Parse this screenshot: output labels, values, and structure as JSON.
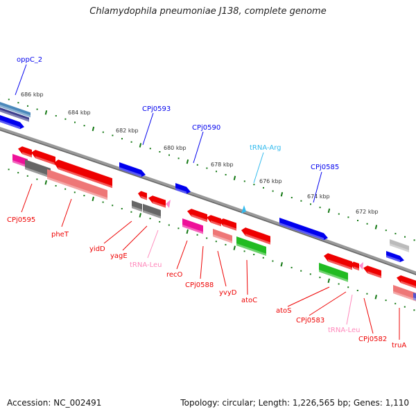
{
  "title": "Chlamydophila pneumoniae J138, complete genome",
  "footer": {
    "accession": "Accession: NC_002491",
    "summary": "Topology: circular; Length: 1,226,565 bp; Genes: 1,110"
  },
  "ruler": [
    "686 kbp",
    "684 kbp",
    "682 kbp",
    "680 kbp",
    "678 kbp",
    "676 kbp",
    "674 kbp",
    "672 kbp"
  ],
  "top_labels": [
    "oppC_2",
    "CPj0593",
    "CPj0590",
    "tRNA-Arg",
    "CPj0585"
  ],
  "bottom_labels": [
    "CPj0595",
    "pheT",
    "yidD",
    "yagE",
    "tRNA-Leu",
    "recO",
    "CPj0588",
    "yvyD",
    "atoC",
    "atoS",
    "CPj0583",
    "tRNA-Leu",
    "CPj0582",
    "truA"
  ],
  "colors": {
    "forward": "#0000ee",
    "reverse": "#ee0000",
    "trna": "#ff88cc",
    "trna_arg": "#33bbee",
    "tick": "#117711",
    "backbone": "#888888"
  }
}
